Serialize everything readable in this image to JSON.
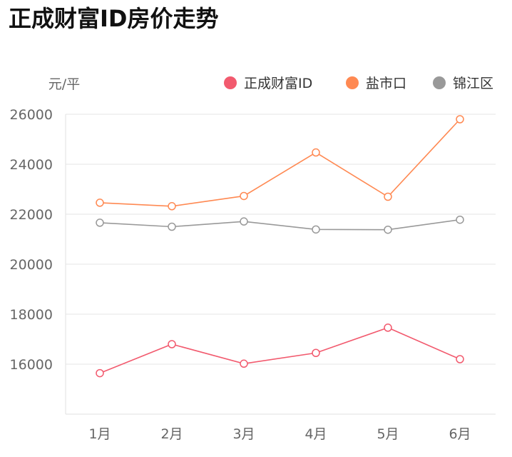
{
  "page": {
    "title": "正成财富ID房价走势"
  },
  "chart_data": {
    "type": "line",
    "title": "正成财富ID房价走势",
    "ylabel": "元/平",
    "xlabel": "",
    "categories": [
      "1月",
      "2月",
      "3月",
      "4月",
      "5月",
      "6月"
    ],
    "yticks": [
      16000,
      18000,
      20000,
      22000,
      24000,
      26000
    ],
    "ylim": [
      14000,
      26000
    ],
    "grid": true,
    "legend_position": "top-right",
    "series": [
      {
        "name": "正成财富ID",
        "color": "#f25a6e",
        "values": [
          15640,
          16800,
          16020,
          16450,
          17460,
          16200
        ]
      },
      {
        "name": "盐市口",
        "color": "#ff8952",
        "values": [
          22460,
          22320,
          22730,
          24470,
          22700,
          25800
        ]
      },
      {
        "name": "锦江区",
        "color": "#999999",
        "values": [
          21660,
          21500,
          21710,
          21390,
          21380,
          21780
        ]
      }
    ]
  }
}
